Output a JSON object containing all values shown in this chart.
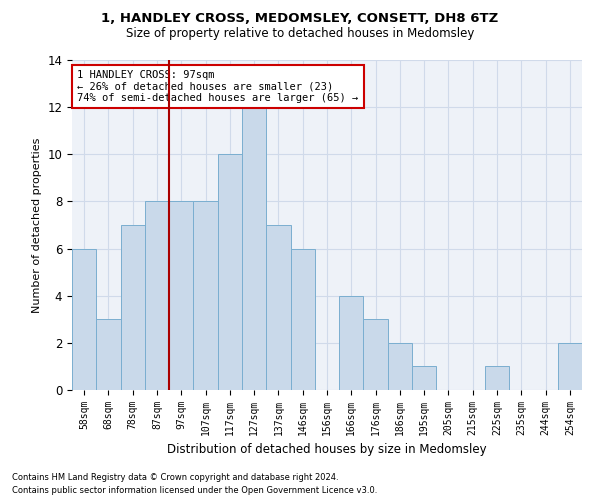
{
  "title1": "1, HANDLEY CROSS, MEDOMSLEY, CONSETT, DH8 6TZ",
  "title2": "Size of property relative to detached houses in Medomsley",
  "xlabel": "Distribution of detached houses by size in Medomsley",
  "ylabel": "Number of detached properties",
  "footnote1": "Contains HM Land Registry data © Crown copyright and database right 2024.",
  "footnote2": "Contains public sector information licensed under the Open Government Licence v3.0.",
  "bar_labels": [
    "58sqm",
    "68sqm",
    "78sqm",
    "87sqm",
    "97sqm",
    "107sqm",
    "117sqm",
    "127sqm",
    "137sqm",
    "146sqm",
    "156sqm",
    "166sqm",
    "176sqm",
    "186sqm",
    "195sqm",
    "205sqm",
    "215sqm",
    "225sqm",
    "235sqm",
    "244sqm",
    "254sqm"
  ],
  "bar_values": [
    6,
    3,
    7,
    8,
    8,
    8,
    10,
    12,
    7,
    6,
    0,
    4,
    3,
    2,
    1,
    0,
    0,
    1,
    0,
    0,
    2
  ],
  "bar_color": "#c9d9ea",
  "bar_edge_color": "#7aaed0",
  "grid_color": "#d0daea",
  "background_color": "#eef2f8",
  "property_line_color": "#aa0000",
  "annotation_text": "1 HANDLEY CROSS: 97sqm\n← 26% of detached houses are smaller (23)\n74% of semi-detached houses are larger (65) →",
  "annotation_box_color": "#ffffff",
  "annotation_border_color": "#cc0000",
  "ylim": [
    0,
    14
  ],
  "yticks": [
    0,
    2,
    4,
    6,
    8,
    10,
    12,
    14
  ]
}
